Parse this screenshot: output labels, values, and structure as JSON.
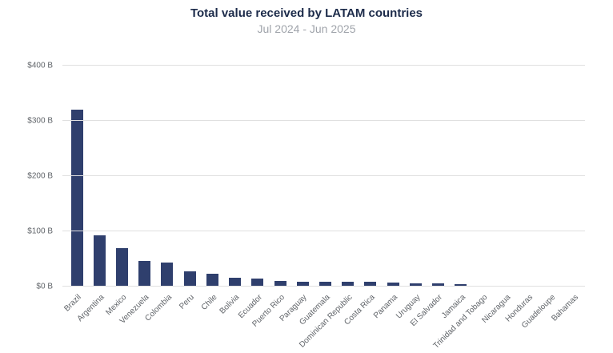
{
  "colors": {
    "bar": "#2f3f6d",
    "grid": "#e0e0e0",
    "title": "#1c2b4a",
    "subtitle": "#a0a4ab",
    "axis_label": "#5f6368"
  },
  "chart_data": {
    "type": "bar",
    "title": "Total value received by LATAM countries",
    "subtitle": "Jul 2024 - Jun 2025",
    "xlabel": "",
    "ylabel": "",
    "ylim": [
      0,
      400
    ],
    "grid": true,
    "legend": false,
    "ytick_values": [
      0,
      100,
      200,
      300,
      400
    ],
    "ytick_labels": [
      "$0 B",
      "$100 B",
      "$200 B",
      "$300 B",
      "$400 B"
    ],
    "categories": [
      "Brazil",
      "Argentina",
      "Mexico",
      "Venezuela",
      "Colombia",
      "Peru",
      "Chile",
      "Bolivia",
      "Ecuador",
      "Puerto Rico",
      "Paraguay",
      "Guatemala",
      "Dominican Republic",
      "Costa Rica",
      "Panama",
      "Uruguay",
      "El Salvador",
      "Jamaica",
      "Trinidad and Tobago",
      "Nicaragua",
      "Honduras",
      "Guadeloupe",
      "Bahamas"
    ],
    "values": [
      320,
      93,
      70,
      46,
      44,
      27,
      23,
      16,
      14,
      10,
      9,
      9,
      8.5,
      8,
      7,
      6,
      5.5,
      4,
      2,
      2,
      1.5,
      1,
      0.7
    ],
    "values_unit": "$B"
  }
}
